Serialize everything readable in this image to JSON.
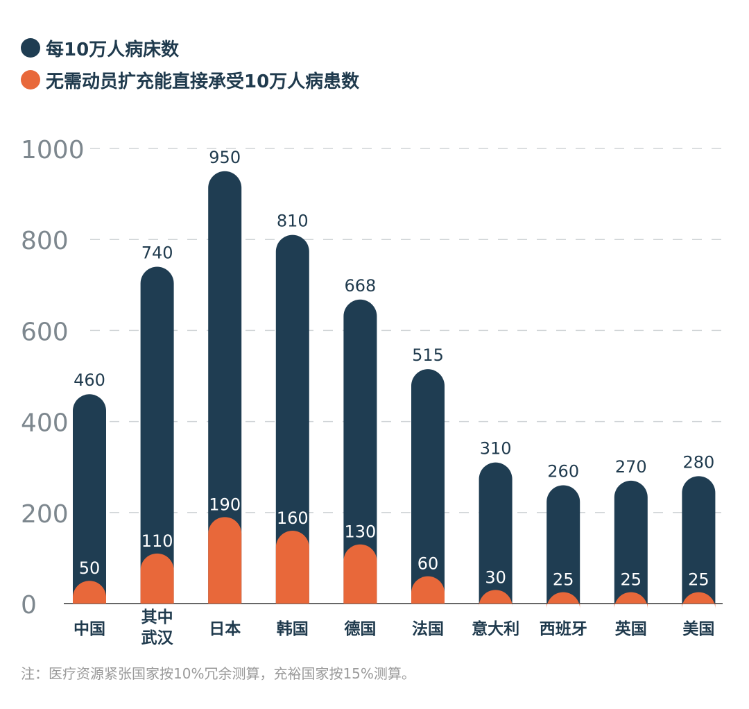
{
  "colors": {
    "beds": "#1f3d52",
    "patients": "#e8683a",
    "axis_text": "#7d878e",
    "label_text": "#1f3a4d"
  },
  "chart_data": {
    "type": "bar",
    "title": "",
    "xlabel": "",
    "ylabel": "",
    "ylim": [
      0,
      1000
    ],
    "yticks": [
      0,
      200,
      400,
      600,
      800,
      1000
    ],
    "grid": true,
    "legend_position": "top-left",
    "categories": [
      [
        "中国"
      ],
      [
        "其中",
        "武汉"
      ],
      [
        "日本"
      ],
      [
        "韩国"
      ],
      [
        "德国"
      ],
      [
        "法国"
      ],
      [
        "意大利"
      ],
      [
        "西班牙"
      ],
      [
        "英国"
      ],
      [
        "美国"
      ]
    ],
    "series": [
      {
        "name": "每10万人病床数",
        "values": [
          460,
          740,
          950,
          810,
          668,
          515,
          310,
          260,
          270,
          280
        ]
      },
      {
        "name": "无需动员扩充能直接承受10万人病患数",
        "values": [
          50,
          110,
          190,
          160,
          130,
          60,
          30,
          25,
          25,
          25
        ]
      }
    ]
  },
  "legend": [
    {
      "label": "每10万人病床数"
    },
    {
      "label": "无需动员扩充能直接承受10万人病患数"
    }
  ],
  "note": "注：医疗资源紧张国家按10%冗余测算，充裕国家按15%测算。"
}
